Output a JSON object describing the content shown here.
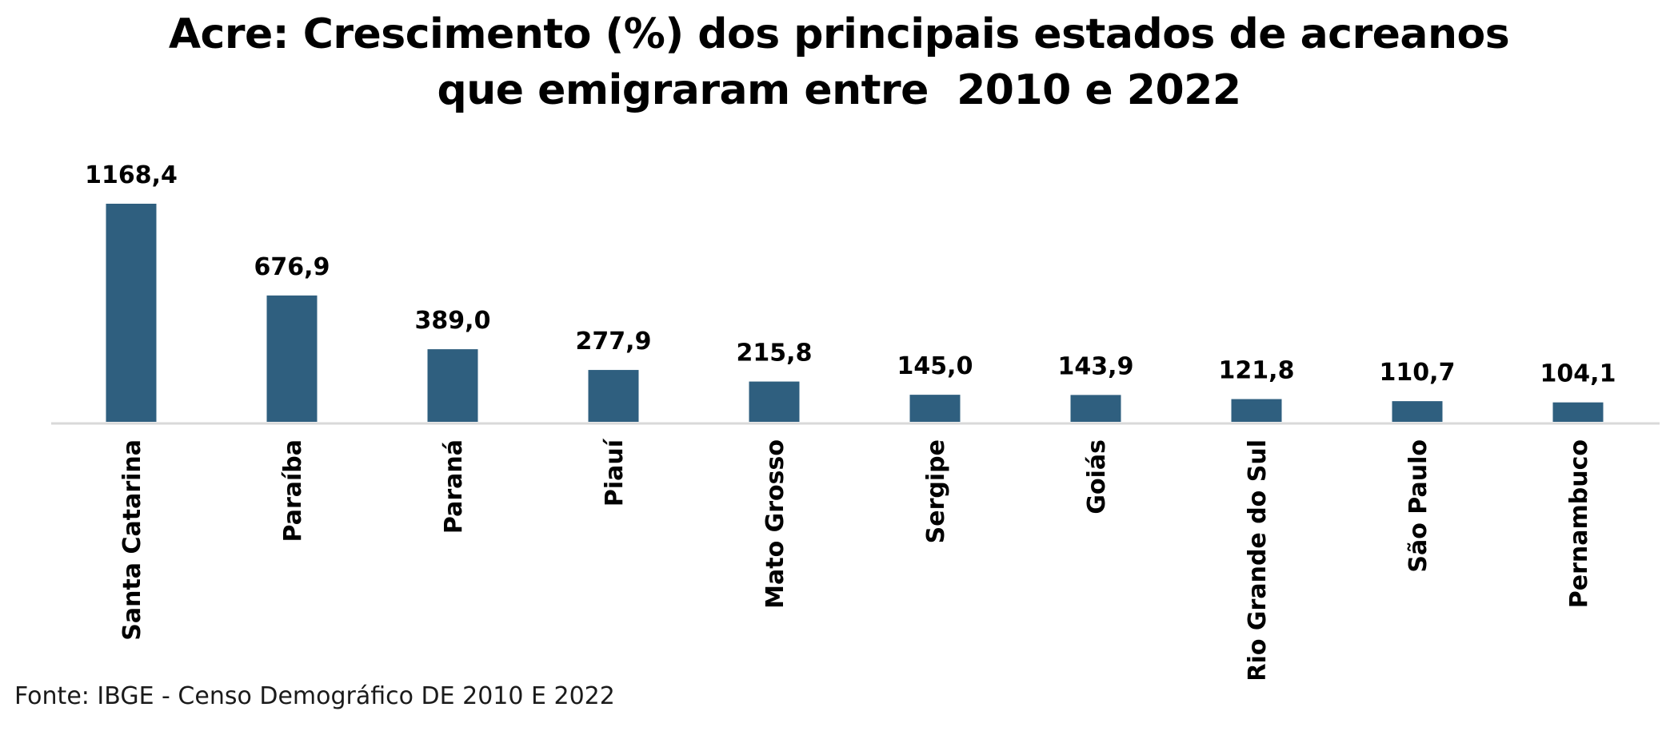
{
  "chart_data": {
    "type": "bar",
    "title_lines": [
      "Acre: Crescimento (%) dos principais estados de acreanos",
      "que emigraram entre  2010 e 2022"
    ],
    "categories": [
      "Santa Catarina",
      "Paraíba",
      "Paraná",
      "Piauí",
      "Mato Grosso",
      "Sergipe",
      "Goiás",
      "Rio Grande do Sul",
      "São Paulo",
      "Pernambuco"
    ],
    "values": [
      1168.4,
      676.9,
      389.0,
      277.9,
      215.8,
      145.0,
      143.9,
      121.8,
      110.7,
      104.1
    ],
    "value_labels": [
      "1168,4",
      "676,9",
      "389,0",
      "277,9",
      "215,8",
      "145,0",
      "143,9",
      "121,8",
      "110,7",
      "104,1"
    ],
    "xlabel": "",
    "ylabel": "",
    "ylim": [
      0,
      1168.4
    ],
    "grid": false,
    "legend": "none",
    "colors": {
      "bar": "#2f5f7f",
      "axis": "#d9d9d9",
      "text": "#000000"
    }
  },
  "source_text": "Fonte: IBGE - Censo Demográfico DE 2010 E 2022"
}
